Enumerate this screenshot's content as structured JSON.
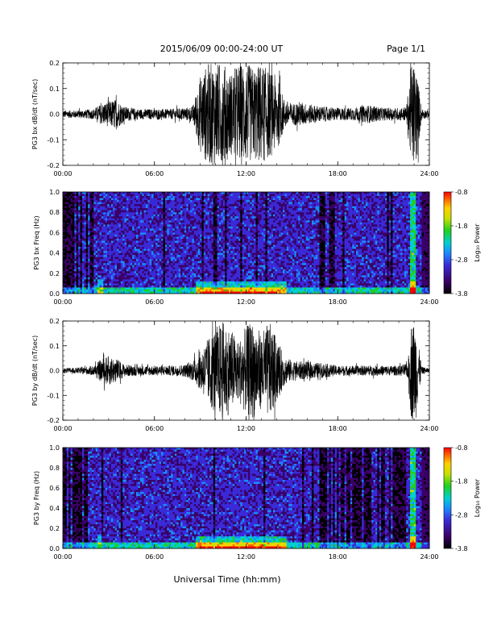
{
  "header": {
    "title": "2015/06/09  00:00-24:00 UT",
    "page": "Page 1/1"
  },
  "footer": {
    "xlabel": "Universal Time (hh:mm)"
  },
  "colorbar": {
    "label": "Log₁₀ Power",
    "ticks": [
      "-0.8",
      "-1.8",
      "-2.8",
      "-3.8"
    ],
    "range": [
      -3.8,
      -0.8
    ],
    "colors": [
      "#000000",
      "#3a0066",
      "#3a2ad8",
      "#1a8cff",
      "#00d0d0",
      "#20d020",
      "#c8e000",
      "#ffd000",
      "#ff6000",
      "#ff0000"
    ]
  },
  "chart_data": [
    {
      "type": "line",
      "ylabel": "PG3 bx dB/dt (nT/sec)",
      "x_ticks": [
        "00:00",
        "06:00",
        "12:00",
        "18:00",
        "24:00"
      ],
      "xlim": [
        0,
        24
      ],
      "ylim": [
        -0.2,
        0.2
      ],
      "y_ticks": [
        "0.2",
        "0.1",
        "0.0",
        "-0.1",
        "-0.2"
      ],
      "envelope": {
        "x": [
          0,
          1,
          2,
          2.5,
          3,
          3.5,
          4,
          5,
          6,
          7,
          8,
          8.5,
          8.8,
          9,
          9.5,
          10,
          10.5,
          11,
          11.5,
          12,
          12.5,
          13,
          13.5,
          14,
          14.5,
          15,
          15.5,
          16,
          16.5,
          17,
          18,
          19,
          20,
          20.5,
          21,
          22,
          22.5,
          22.8,
          23.1,
          23.5,
          24
        ],
        "amplitude": [
          0.015,
          0.015,
          0.02,
          0.04,
          0.05,
          0.06,
          0.03,
          0.02,
          0.02,
          0.02,
          0.025,
          0.03,
          0.1,
          0.15,
          0.2,
          0.2,
          0.2,
          0.16,
          0.2,
          0.2,
          0.18,
          0.2,
          0.17,
          0.15,
          0.06,
          0.04,
          0.05,
          0.04,
          0.035,
          0.03,
          0.025,
          0.025,
          0.035,
          0.03,
          0.025,
          0.025,
          0.03,
          0.2,
          0.2,
          0.02,
          0.015
        ]
      }
    },
    {
      "type": "heatmap",
      "ylabel": "PG3 bx Freq (Hz)",
      "x_ticks": [
        "00:00",
        "06:00",
        "12:00",
        "18:00",
        "24:00"
      ],
      "xlim": [
        0,
        24
      ],
      "ylim": [
        0.0,
        1.0
      ],
      "y_ticks": [
        "1.0",
        "0.8",
        "0.6",
        "0.4",
        "0.2",
        "0.0"
      ],
      "colorbar_label": "Log₁₀ Power",
      "colorbar_ticks": [
        "-0.8",
        "-1.8",
        "-2.8",
        "-3.8"
      ]
    },
    {
      "type": "line",
      "ylabel": "PG3 by dB/dt (nT/sec)",
      "x_ticks": [
        "00:00",
        "06:00",
        "12:00",
        "18:00",
        "24:00"
      ],
      "xlim": [
        0,
        24
      ],
      "ylim": [
        -0.2,
        0.2
      ],
      "y_ticks": [
        "0.2",
        "0.1",
        "0.0",
        "-0.1",
        "-0.2"
      ],
      "envelope": {
        "x": [
          0,
          1,
          2,
          2.5,
          3,
          3.5,
          4,
          5,
          6,
          7,
          8,
          8.5,
          9,
          9.5,
          10,
          10.5,
          11,
          11.5,
          12,
          12.5,
          13,
          13.5,
          14,
          14.5,
          15,
          16,
          17,
          18,
          19,
          20,
          21,
          22,
          22.6,
          22.8,
          23.1,
          23.5,
          24
        ],
        "amplitude": [
          0.01,
          0.012,
          0.02,
          0.045,
          0.06,
          0.05,
          0.025,
          0.02,
          0.02,
          0.02,
          0.025,
          0.04,
          0.08,
          0.13,
          0.18,
          0.2,
          0.17,
          0.12,
          0.18,
          0.2,
          0.15,
          0.2,
          0.13,
          0.06,
          0.04,
          0.035,
          0.03,
          0.02,
          0.02,
          0.02,
          0.02,
          0.02,
          0.03,
          0.2,
          0.2,
          0.015,
          0.01
        ]
      }
    },
    {
      "type": "heatmap",
      "ylabel": "PG3 by Freq (Hz)",
      "x_ticks": [
        "00:00",
        "06:00",
        "12:00",
        "18:00",
        "24:00"
      ],
      "xlim": [
        0,
        24
      ],
      "ylim": [
        0.0,
        1.0
      ],
      "y_ticks": [
        "1.0",
        "0.8",
        "0.6",
        "0.4",
        "0.2",
        "0.0"
      ],
      "colorbar_label": "Log₁₀ Power",
      "colorbar_ticks": [
        "-0.8",
        "-1.8",
        "-2.8",
        "-3.8"
      ]
    }
  ]
}
